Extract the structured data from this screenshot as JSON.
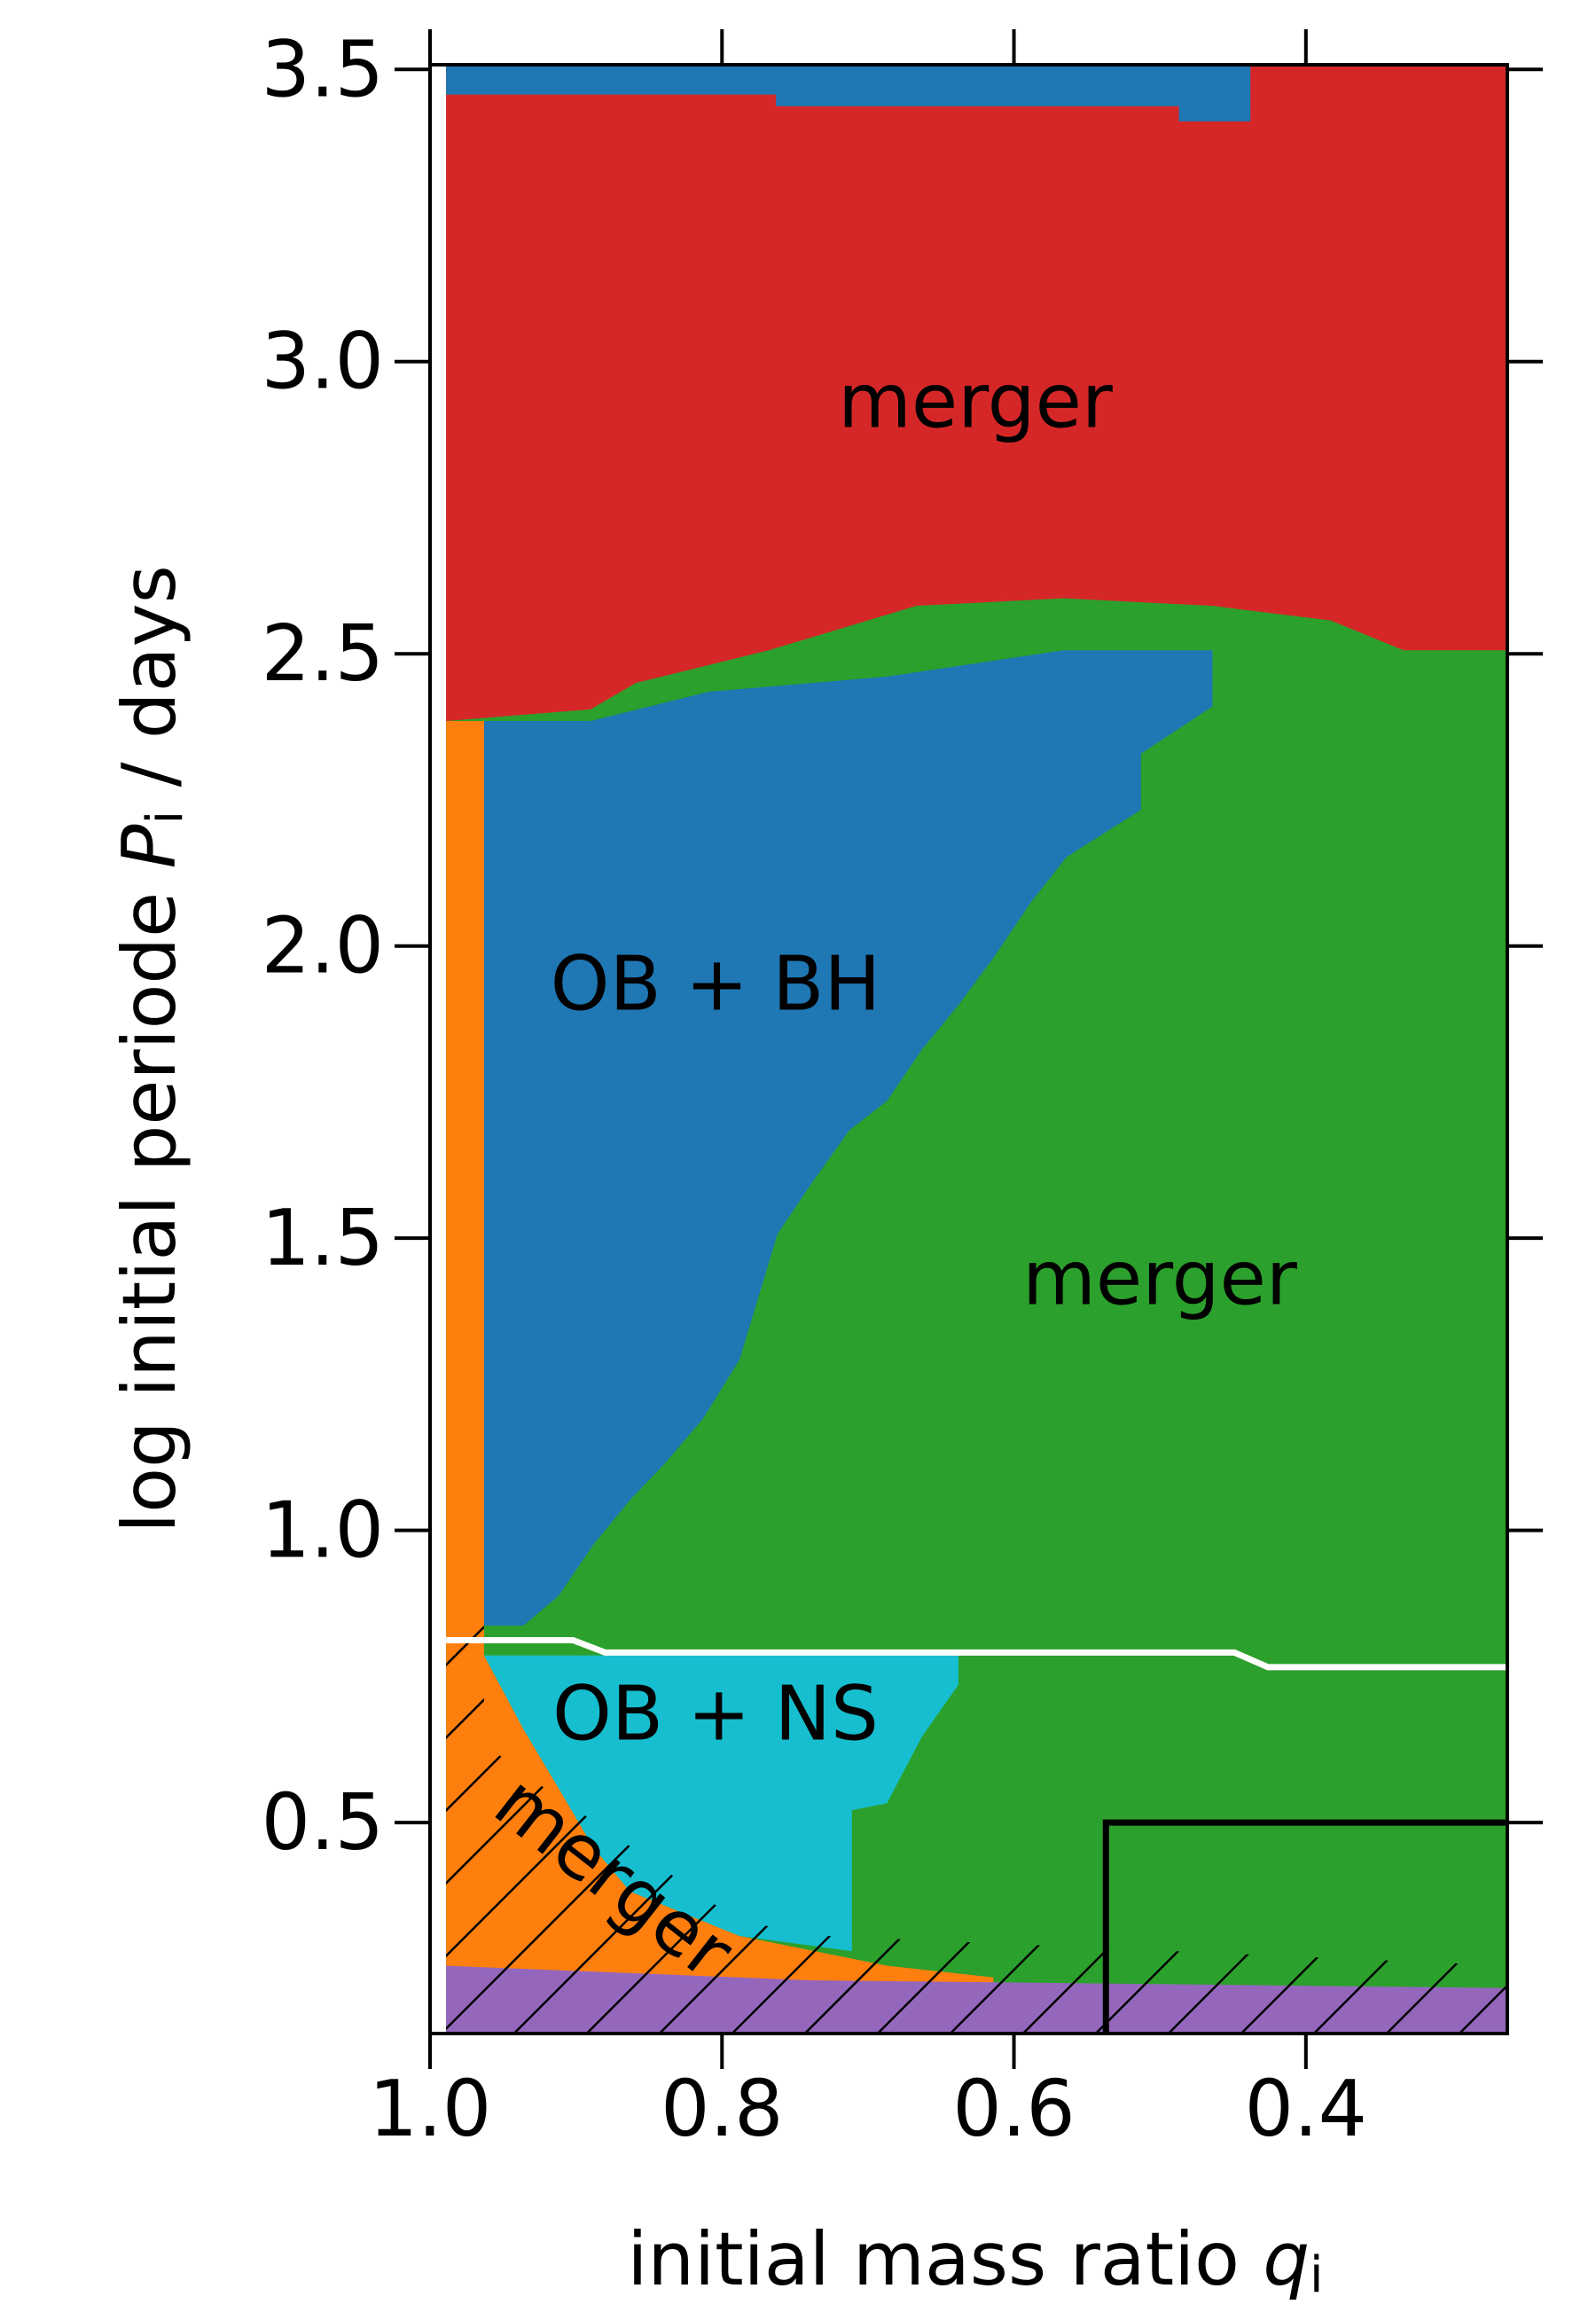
{
  "chart_data": {
    "type": "region-map",
    "xlabel": [
      "initial mass ratio ",
      "q",
      "i"
    ],
    "ylabel": [
      "log initial periode ",
      "P",
      "i",
      " / days"
    ],
    "xlim": [
      1.0,
      0.262
    ],
    "ylim": [
      0.139,
      3.508
    ],
    "xticks": [
      {
        "value": 1,
        "label": "1.0"
      },
      0.8,
      0.6,
      0.4
    ],
    "yticks": [
      0.5,
      {
        "value": 1,
        "label": "1.0"
      },
      1.5,
      {
        "value": 2,
        "label": "2.0"
      },
      2.5,
      {
        "value": 3,
        "label": "3.0"
      },
      3.5
    ],
    "regions": [
      {
        "color": "#2ca02c",
        "q": [
          0.989,
          0.262,
          0.262,
          0.989
        ],
        "logP": [
          3.508,
          3.508,
          0.139,
          0.139
        ]
      },
      {
        "color": "#d62728",
        "q": [
          0.989,
          0.262,
          0.262,
          0.333,
          0.383,
          0.464,
          0.566,
          0.667,
          0.768,
          0.859,
          0.89,
          0.989
        ],
        "logP": [
          3.508,
          3.508,
          2.506,
          2.506,
          2.557,
          2.582,
          2.595,
          2.582,
          2.506,
          2.45,
          2.405,
          2.385
        ]
      },
      {
        "color": "#1f77b4",
        "q": [
          0.989,
          0.438,
          0.438,
          0.487,
          0.487,
          0.763,
          0.763,
          0.989
        ],
        "logP": [
          3.508,
          3.508,
          3.411,
          3.411,
          3.437,
          3.437,
          3.457,
          3.457
        ]
      },
      {
        "color": "#1f77b4",
        "q": [
          0.963,
          0.89,
          0.809,
          0.687,
          0.566,
          0.464,
          0.464,
          0.513,
          0.513,
          0.564,
          0.588,
          0.614,
          0.638,
          0.663,
          0.687,
          0.713,
          0.738,
          0.762,
          0.788,
          0.813,
          0.839,
          0.863,
          0.888,
          0.912,
          0.936,
          0.963
        ],
        "logP": [
          2.385,
          2.385,
          2.435,
          2.461,
          2.506,
          2.506,
          2.41,
          2.329,
          2.233,
          2.152,
          2.076,
          1.98,
          1.899,
          1.823,
          1.735,
          1.684,
          1.596,
          1.507,
          1.292,
          1.191,
          1.115,
          1.052,
          0.976,
          0.888,
          0.837,
          0.837
        ]
      },
      {
        "color": "#ff7f0e",
        "q": [
          0.989,
          0.963,
          0.963,
          0.936,
          0.912,
          0.888,
          0.863,
          0.788,
          0.687,
          0.614,
          0.614,
          0.748,
          0.839,
          0.989
        ],
        "logP": [
          2.385,
          2.385,
          0.786,
          0.66,
          0.559,
          0.457,
          0.382,
          0.306,
          0.255,
          0.235,
          0.189,
          0.189,
          0.205,
          0.205
        ]
      },
      {
        "color": "#17becf",
        "q": [
          0.963,
          0.638,
          0.638,
          0.663,
          0.687,
          0.711,
          0.711,
          0.788,
          0.863,
          0.888,
          0.912,
          0.936
        ],
        "logP": [
          0.786,
          0.786,
          0.736,
          0.647,
          0.533,
          0.521,
          0.28,
          0.306,
          0.382,
          0.457,
          0.559,
          0.66
        ]
      },
      {
        "color": "#9467bd",
        "q": [
          0.989,
          0.738,
          0.262,
          0.262,
          0.989
        ],
        "logP": [
          0.255,
          0.23,
          0.217,
          0.139,
          0.139
        ]
      },
      {
        "hatch": true,
        "q": [
          0.989,
          0.963,
          0.963,
          0.936,
          0.788,
          0.728,
          0.262,
          0.262,
          0.989
        ],
        "logP": [
          0.888,
          0.85,
          0.635,
          0.584,
          0.331,
          0.306,
          0.255,
          0.139,
          0.139
        ]
      }
    ],
    "lines": [
      {
        "color": "#ffffff",
        "q": [
          0.989,
          0.902,
          0.88,
          0.449,
          0.426,
          0.262
        ],
        "logP": [
          0.812,
          0.812,
          0.791,
          0.791,
          0.766,
          0.766
        ]
      },
      {
        "color": "#000000",
        "q": [
          0.537,
          0.537,
          0.262
        ],
        "logP": [
          0.139,
          0.5,
          0.5
        ]
      }
    ],
    "labels": [
      "merger",
      "OB + BH",
      "merger",
      "OB + NS",
      "merger"
    ]
  }
}
